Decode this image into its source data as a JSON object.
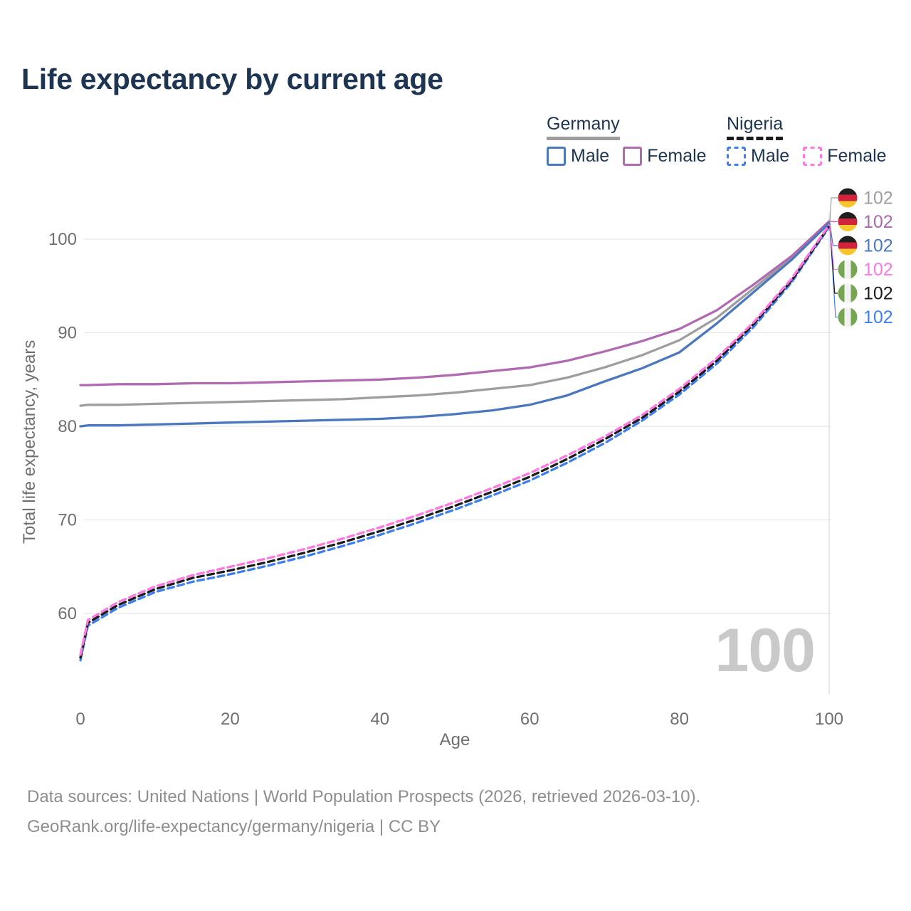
{
  "title": "Life expectancy by current age",
  "legend": {
    "groups": [
      {
        "id": "germany",
        "label": "Germany",
        "line_color": "#9e9e9e",
        "line_style": "solid",
        "items": [
          {
            "label": "Male",
            "color": "#4a77bd",
            "style": "solid"
          },
          {
            "label": "Female",
            "color": "#b16ab1",
            "style": "solid"
          }
        ]
      },
      {
        "id": "nigeria",
        "label": "Nigeria",
        "line_color": "#1c1c1c",
        "line_style": "dashed",
        "items": [
          {
            "label": "Male",
            "color": "#3d7ff2",
            "style": "dashed"
          },
          {
            "label": "Female",
            "color": "#ff78e0",
            "style": "dashed"
          }
        ]
      }
    ]
  },
  "chart_data": {
    "type": "line",
    "title": "Life expectancy by current age",
    "xlabel": "Age",
    "ylabel": "Total life expectancy, years",
    "x_ticks": [
      0,
      20,
      40,
      60,
      80,
      100
    ],
    "y_ticks": [
      60,
      70,
      80,
      90,
      100
    ],
    "xlim": [
      0,
      100
    ],
    "ylim": [
      54,
      104
    ],
    "grid": "horizontal",
    "legend_position": "top-right",
    "age_indicator": {
      "age": 100,
      "label": "100"
    },
    "ages": [
      0,
      1,
      5,
      10,
      15,
      20,
      25,
      30,
      35,
      40,
      45,
      50,
      55,
      60,
      65,
      70,
      75,
      80,
      85,
      90,
      95,
      100
    ],
    "series": [
      {
        "name": "Germany — Both sexes",
        "country": "germany",
        "sex": "both",
        "color": "#9e9e9e",
        "dash": "solid",
        "end_label": "102",
        "row": 0,
        "values": [
          82.2,
          82.3,
          82.3,
          82.4,
          82.5,
          82.6,
          82.7,
          82.8,
          82.9,
          83.1,
          83.3,
          83.6,
          84.0,
          84.4,
          85.2,
          86.3,
          87.6,
          89.2,
          91.6,
          94.8,
          98.0,
          101.8
        ]
      },
      {
        "name": "Germany — Female",
        "country": "germany",
        "sex": "female",
        "color": "#b16ab1",
        "dash": "solid",
        "end_label": "102",
        "row": 1,
        "values": [
          84.4,
          84.4,
          84.5,
          84.5,
          84.6,
          84.6,
          84.7,
          84.8,
          84.9,
          85.0,
          85.2,
          85.5,
          85.9,
          86.3,
          87.0,
          88.0,
          89.1,
          90.4,
          92.4,
          95.2,
          98.2,
          101.9
        ]
      },
      {
        "name": "Germany — Male",
        "country": "germany",
        "sex": "male",
        "color": "#4a77bd",
        "dash": "solid",
        "end_label": "102",
        "row": 2,
        "values": [
          80.0,
          80.1,
          80.1,
          80.2,
          80.3,
          80.4,
          80.5,
          80.6,
          80.7,
          80.8,
          81.0,
          81.3,
          81.7,
          82.3,
          83.3,
          84.8,
          86.2,
          87.9,
          91.0,
          94.4,
          97.8,
          101.7
        ]
      },
      {
        "name": "Nigeria — Male",
        "country": "nigeria",
        "sex": "male",
        "color": "#3d7ff2",
        "dash": "dashed",
        "end_label": "102",
        "row": 5,
        "values": [
          55.0,
          58.7,
          60.6,
          62.3,
          63.4,
          64.2,
          65.1,
          66.1,
          67.2,
          68.4,
          69.7,
          71.1,
          72.6,
          74.2,
          76.1,
          78.2,
          80.6,
          83.4,
          86.7,
          90.7,
          95.4,
          101.3
        ]
      },
      {
        "name": "Nigeria — Both sexes",
        "country": "nigeria",
        "sex": "both",
        "color": "#1c1c1c",
        "dash": "dashed",
        "end_label": "102",
        "row": 4,
        "values": [
          55.3,
          59.0,
          60.9,
          62.6,
          63.8,
          64.6,
          65.5,
          66.5,
          67.6,
          68.8,
          70.1,
          71.5,
          73.0,
          74.6,
          76.5,
          78.6,
          80.9,
          83.7,
          87.0,
          91.0,
          95.6,
          101.4
        ]
      },
      {
        "name": "Nigeria — Female",
        "country": "nigeria",
        "sex": "female",
        "color": "#ff78e0",
        "dash": "dashed",
        "end_label": "102",
        "row": 3,
        "values": [
          55.6,
          59.3,
          61.2,
          62.9,
          64.1,
          65.0,
          65.9,
          66.9,
          68.0,
          69.2,
          70.5,
          71.9,
          73.4,
          75.0,
          76.9,
          78.9,
          81.2,
          84.0,
          87.3,
          91.2,
          95.8,
          101.5
        ]
      }
    ],
    "end_labels": [
      {
        "flag": "germany",
        "value": "102",
        "color": "#9e9e9e"
      },
      {
        "flag": "germany",
        "value": "102",
        "color": "#a86ba8"
      },
      {
        "flag": "germany",
        "value": "102",
        "color": "#4a77bd"
      },
      {
        "flag": "nigeria",
        "value": "102",
        "color": "#ff78e0"
      },
      {
        "flag": "nigeria",
        "value": "102",
        "color": "#1c1c1c"
      },
      {
        "flag": "nigeria",
        "value": "102",
        "color": "#3d7ff2"
      }
    ]
  },
  "flags": {
    "germany": {
      "type": "horizontal",
      "colors": [
        "#1f1f1f",
        "#d2233c",
        "#f8c52c"
      ]
    },
    "nigeria": {
      "type": "vertical",
      "colors": [
        "#77a653",
        "#f2f2f2",
        "#77a653"
      ]
    }
  },
  "footer": {
    "line1": "Data sources: United Nations | World Population Prospects (2026, retrieved 2026-03-10).",
    "line2": "GeoRank.org/life-expectancy/germany/nigeria | CC BY"
  }
}
